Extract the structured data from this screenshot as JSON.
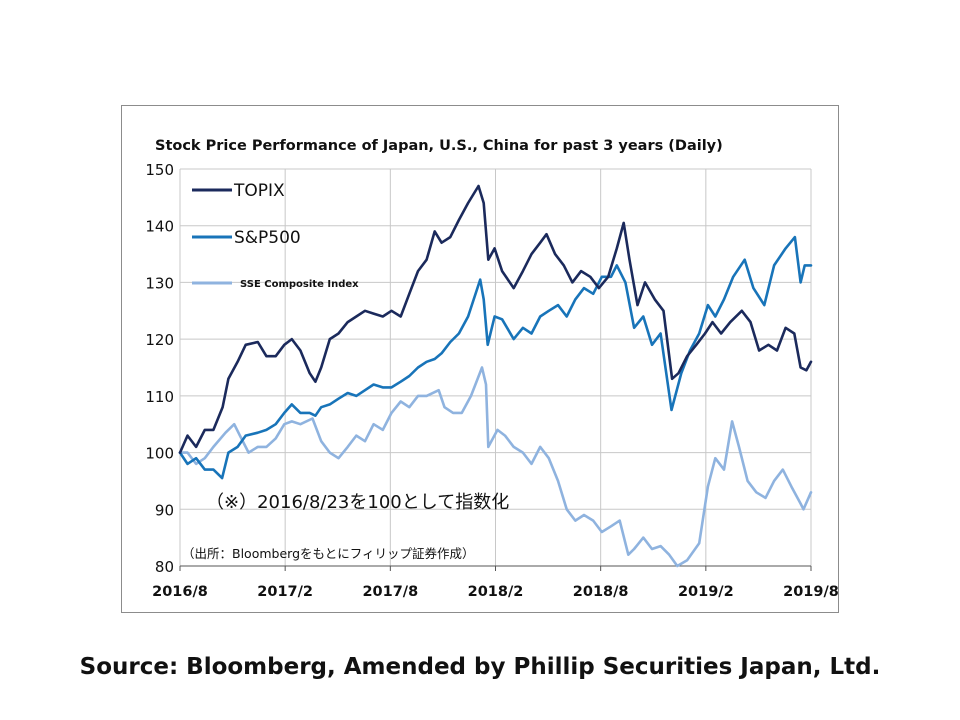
{
  "chart_data": {
    "type": "line",
    "title": "Stock Price Performance of Japan, U.S., China for past 3 years (Daily)",
    "ylim": [
      80,
      150
    ],
    "yticks": [
      80,
      90,
      100,
      110,
      120,
      130,
      140,
      150
    ],
    "xlim": [
      "2016-08-23",
      "2019-08-23"
    ],
    "xticks": [
      "2016/8",
      "2017/2",
      "2017/8",
      "2018/2",
      "2018/8",
      "2019/2",
      "2019/8"
    ],
    "grid": true,
    "legend_position": "top-left",
    "note": "（※）2016/8/23を100として指数化",
    "source_note": "（出所：Bloombergをもとにフィリップ証券作成）",
    "series": [
      {
        "name": "TOPIX",
        "color": "#1b2a5c",
        "points": [
          [
            "2016-08-23",
            100
          ],
          [
            "2016-09-05",
            103
          ],
          [
            "2016-09-20",
            101
          ],
          [
            "2016-10-05",
            104
          ],
          [
            "2016-10-20",
            104
          ],
          [
            "2016-11-05",
            108
          ],
          [
            "2016-11-15",
            113
          ],
          [
            "2016-12-01",
            116
          ],
          [
            "2016-12-15",
            119
          ],
          [
            "2017-01-05",
            119.5
          ],
          [
            "2017-01-20",
            117
          ],
          [
            "2017-02-05",
            117
          ],
          [
            "2017-02-20",
            119
          ],
          [
            "2017-03-05",
            120
          ],
          [
            "2017-03-20",
            118
          ],
          [
            "2017-04-05",
            114
          ],
          [
            "2017-04-15",
            112.5
          ],
          [
            "2017-04-25",
            115
          ],
          [
            "2017-05-10",
            120
          ],
          [
            "2017-05-25",
            121
          ],
          [
            "2017-06-10",
            123
          ],
          [
            "2017-06-25",
            124
          ],
          [
            "2017-07-10",
            125
          ],
          [
            "2017-07-25",
            124.5
          ],
          [
            "2017-08-10",
            124
          ],
          [
            "2017-08-25",
            125
          ],
          [
            "2017-09-10",
            124
          ],
          [
            "2017-09-25",
            128
          ],
          [
            "2017-10-10",
            132
          ],
          [
            "2017-10-25",
            134
          ],
          [
            "2017-11-08",
            139
          ],
          [
            "2017-11-20",
            137
          ],
          [
            "2017-12-05",
            138
          ],
          [
            "2017-12-20",
            141
          ],
          [
            "2018-01-05",
            144
          ],
          [
            "2018-01-23",
            147
          ],
          [
            "2018-02-01",
            144
          ],
          [
            "2018-02-09",
            134
          ],
          [
            "2018-02-20",
            136
          ],
          [
            "2018-03-05",
            132
          ],
          [
            "2018-03-25",
            129
          ],
          [
            "2018-04-10",
            132
          ],
          [
            "2018-04-25",
            135
          ],
          [
            "2018-05-10",
            137
          ],
          [
            "2018-05-21",
            138.5
          ],
          [
            "2018-06-05",
            135
          ],
          [
            "2018-06-20",
            133
          ],
          [
            "2018-07-05",
            130
          ],
          [
            "2018-07-20",
            132
          ],
          [
            "2018-08-05",
            131
          ],
          [
            "2018-08-20",
            129
          ],
          [
            "2018-09-05",
            131
          ],
          [
            "2018-09-20",
            136
          ],
          [
            "2018-10-02",
            140.5
          ],
          [
            "2018-10-12",
            134
          ],
          [
            "2018-10-26",
            126
          ],
          [
            "2018-11-08",
            130
          ],
          [
            "2018-11-25",
            127
          ],
          [
            "2018-12-10",
            125
          ],
          [
            "2018-12-25",
            113
          ],
          [
            "2019-01-05",
            114
          ],
          [
            "2019-01-20",
            117
          ],
          [
            "2019-02-05",
            119
          ],
          [
            "2019-02-20",
            121
          ],
          [
            "2019-03-05",
            123
          ],
          [
            "2019-03-20",
            121
          ],
          [
            "2019-04-05",
            123
          ],
          [
            "2019-04-25",
            125
          ],
          [
            "2019-05-10",
            123
          ],
          [
            "2019-05-25",
            118
          ],
          [
            "2019-06-10",
            119
          ],
          [
            "2019-06-25",
            118
          ],
          [
            "2019-07-10",
            122
          ],
          [
            "2019-07-25",
            121
          ],
          [
            "2019-08-05",
            115
          ],
          [
            "2019-08-15",
            114.5
          ],
          [
            "2019-08-23",
            116
          ]
        ]
      },
      {
        "name": "S&P500",
        "color": "#1874b9",
        "points": [
          [
            "2016-08-23",
            100
          ],
          [
            "2016-09-05",
            98
          ],
          [
            "2016-09-20",
            99
          ],
          [
            "2016-10-05",
            97
          ],
          [
            "2016-10-20",
            97
          ],
          [
            "2016-11-04",
            95.5
          ],
          [
            "2016-11-15",
            100
          ],
          [
            "2016-12-01",
            101
          ],
          [
            "2016-12-15",
            103
          ],
          [
            "2017-01-05",
            103.5
          ],
          [
            "2017-01-20",
            104
          ],
          [
            "2017-02-05",
            105
          ],
          [
            "2017-02-20",
            107
          ],
          [
            "2017-03-05",
            108.5
          ],
          [
            "2017-03-20",
            107
          ],
          [
            "2017-04-05",
            107
          ],
          [
            "2017-04-15",
            106.5
          ],
          [
            "2017-04-25",
            108
          ],
          [
            "2017-05-10",
            108.5
          ],
          [
            "2017-05-25",
            109.5
          ],
          [
            "2017-06-10",
            110.5
          ],
          [
            "2017-06-25",
            110
          ],
          [
            "2017-07-10",
            111
          ],
          [
            "2017-07-25",
            112
          ],
          [
            "2017-08-10",
            111.5
          ],
          [
            "2017-08-25",
            111.5
          ],
          [
            "2017-09-10",
            112.5
          ],
          [
            "2017-09-25",
            113.5
          ],
          [
            "2017-10-10",
            115
          ],
          [
            "2017-10-25",
            116
          ],
          [
            "2017-11-08",
            116.5
          ],
          [
            "2017-11-20",
            117.5
          ],
          [
            "2017-12-05",
            119.5
          ],
          [
            "2017-12-20",
            121
          ],
          [
            "2018-01-05",
            124
          ],
          [
            "2018-01-26",
            130.5
          ],
          [
            "2018-02-01",
            127
          ],
          [
            "2018-02-08",
            119
          ],
          [
            "2018-02-20",
            124
          ],
          [
            "2018-03-05",
            123.5
          ],
          [
            "2018-03-25",
            120
          ],
          [
            "2018-04-10",
            122
          ],
          [
            "2018-04-25",
            121
          ],
          [
            "2018-05-10",
            124
          ],
          [
            "2018-05-25",
            125
          ],
          [
            "2018-06-10",
            126
          ],
          [
            "2018-06-25",
            124
          ],
          [
            "2018-07-10",
            127
          ],
          [
            "2018-07-25",
            129
          ],
          [
            "2018-08-10",
            128
          ],
          [
            "2018-08-25",
            131
          ],
          [
            "2018-09-10",
            131
          ],
          [
            "2018-09-20",
            133
          ],
          [
            "2018-10-05",
            130
          ],
          [
            "2018-10-20",
            122
          ],
          [
            "2018-11-05",
            124
          ],
          [
            "2018-11-20",
            119
          ],
          [
            "2018-12-05",
            121
          ],
          [
            "2018-12-24",
            107.5
          ],
          [
            "2019-01-10",
            114
          ],
          [
            "2019-01-25",
            118
          ],
          [
            "2019-02-10",
            121
          ],
          [
            "2019-02-25",
            126
          ],
          [
            "2019-03-10",
            124
          ],
          [
            "2019-03-25",
            127
          ],
          [
            "2019-04-10",
            131
          ],
          [
            "2019-04-30",
            134
          ],
          [
            "2019-05-15",
            129
          ],
          [
            "2019-06-03",
            126
          ],
          [
            "2019-06-20",
            133
          ],
          [
            "2019-07-10",
            136
          ],
          [
            "2019-07-26",
            138
          ],
          [
            "2019-08-05",
            130
          ],
          [
            "2019-08-12",
            133
          ],
          [
            "2019-08-23",
            133
          ]
        ]
      },
      {
        "name": "SSE Composite Index",
        "color": "#8fb3df",
        "points": [
          [
            "2016-08-23",
            100
          ],
          [
            "2016-09-05",
            100
          ],
          [
            "2016-09-20",
            98
          ],
          [
            "2016-10-05",
            99
          ],
          [
            "2016-10-20",
            101
          ],
          [
            "2016-11-10",
            103.5
          ],
          [
            "2016-11-25",
            105
          ],
          [
            "2016-12-05",
            103
          ],
          [
            "2016-12-20",
            100
          ],
          [
            "2017-01-05",
            101
          ],
          [
            "2017-01-20",
            101
          ],
          [
            "2017-02-05",
            102.5
          ],
          [
            "2017-02-20",
            105
          ],
          [
            "2017-03-05",
            105.5
          ],
          [
            "2017-03-20",
            105
          ],
          [
            "2017-04-10",
            106
          ],
          [
            "2017-04-25",
            102
          ],
          [
            "2017-05-10",
            100
          ],
          [
            "2017-05-25",
            99
          ],
          [
            "2017-06-10",
            101
          ],
          [
            "2017-06-25",
            103
          ],
          [
            "2017-07-10",
            102
          ],
          [
            "2017-07-25",
            105
          ],
          [
            "2017-08-10",
            104
          ],
          [
            "2017-08-25",
            107
          ],
          [
            "2017-09-10",
            109
          ],
          [
            "2017-09-25",
            108
          ],
          [
            "2017-10-10",
            110
          ],
          [
            "2017-10-25",
            110
          ],
          [
            "2017-11-15",
            111
          ],
          [
            "2017-11-25",
            108
          ],
          [
            "2017-12-10",
            107
          ],
          [
            "2017-12-25",
            107
          ],
          [
            "2018-01-10",
            110
          ],
          [
            "2018-01-29",
            115
          ],
          [
            "2018-02-05",
            112
          ],
          [
            "2018-02-09",
            101
          ],
          [
            "2018-02-25",
            104
          ],
          [
            "2018-03-10",
            103
          ],
          [
            "2018-03-25",
            101
          ],
          [
            "2018-04-10",
            100
          ],
          [
            "2018-04-25",
            98
          ],
          [
            "2018-05-10",
            101
          ],
          [
            "2018-05-25",
            99
          ],
          [
            "2018-06-10",
            95
          ],
          [
            "2018-06-25",
            90
          ],
          [
            "2018-07-10",
            88
          ],
          [
            "2018-07-25",
            89
          ],
          [
            "2018-08-10",
            88
          ],
          [
            "2018-08-25",
            86
          ],
          [
            "2018-09-10",
            87
          ],
          [
            "2018-09-25",
            88
          ],
          [
            "2018-10-10",
            82
          ],
          [
            "2018-10-20",
            83
          ],
          [
            "2018-11-05",
            85
          ],
          [
            "2018-11-20",
            83
          ],
          [
            "2018-12-05",
            83.5
          ],
          [
            "2018-12-20",
            82
          ],
          [
            "2019-01-03",
            80
          ],
          [
            "2019-01-20",
            81
          ],
          [
            "2019-02-10",
            84
          ],
          [
            "2019-02-25",
            94
          ],
          [
            "2019-03-10",
            99
          ],
          [
            "2019-03-25",
            97
          ],
          [
            "2019-04-08",
            105.5
          ],
          [
            "2019-04-20",
            101
          ],
          [
            "2019-05-05",
            95
          ],
          [
            "2019-05-20",
            93
          ],
          [
            "2019-06-05",
            92
          ],
          [
            "2019-06-20",
            95
          ],
          [
            "2019-07-05",
            97
          ],
          [
            "2019-07-20",
            94
          ],
          [
            "2019-08-05",
            91
          ],
          [
            "2019-08-10",
            90
          ],
          [
            "2019-08-23",
            93
          ]
        ]
      }
    ]
  },
  "source": "Source: Bloomberg, Amended by Phillip Securities Japan, Ltd."
}
